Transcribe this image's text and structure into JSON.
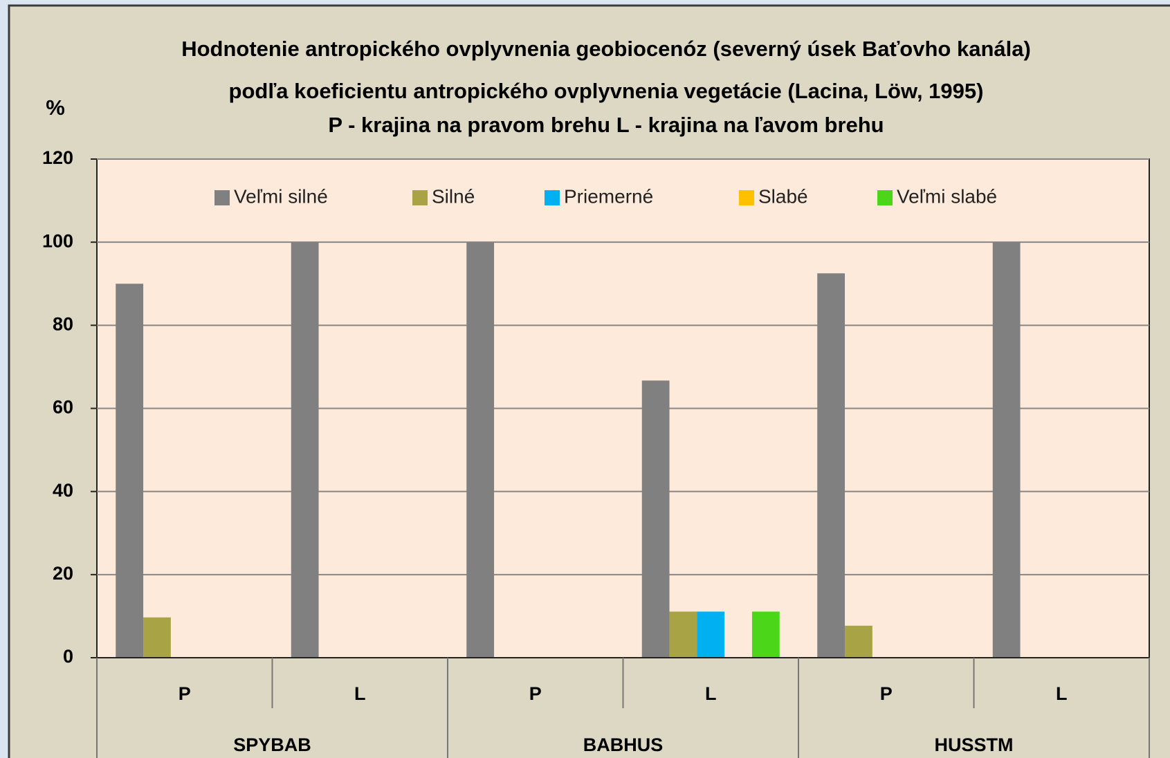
{
  "chart_data": {
    "type": "bar",
    "title": [
      "Hodnotenie antropického ovplyvnenia geobiocenóz (severný úsek Baťovho kanála)",
      "podľa koeficientu antropického ovplyvnenia vegetácie (Lacina, Löw, 1995)",
      "P - krajina na pravom brehu  L - krajina na ľavom brehu"
    ],
    "ylabel": "%",
    "categories": [
      "P",
      "L",
      "P",
      "L",
      "P",
      "L"
    ],
    "category_groups": [
      "SPYBAB",
      "BABHUS",
      "HUSSTM"
    ],
    "series": [
      {
        "name": "Veľmi silné",
        "color": "#808080",
        "values": [
          90,
          100,
          100,
          66.7,
          92.5,
          100
        ]
      },
      {
        "name": "Silné",
        "color": "#a8a445",
        "values": [
          9.7,
          0,
          0,
          11.1,
          7.7,
          0
        ]
      },
      {
        "name": "Priemerné",
        "color": "#00b0f0",
        "values": [
          0,
          0,
          0,
          11.1,
          0,
          0
        ]
      },
      {
        "name": "Slabé",
        "color": "#ffc000",
        "values": [
          0,
          0,
          0,
          0,
          0,
          0
        ]
      },
      {
        "name": "Veľmi slabé",
        "color": "#4cd61a",
        "values": [
          0,
          0,
          0,
          11.1,
          0,
          0
        ]
      }
    ],
    "ylim": [
      0,
      120
    ],
    "yticks": [
      0,
      20,
      40,
      60,
      80,
      100,
      120
    ],
    "grid": true,
    "legend": "top"
  }
}
